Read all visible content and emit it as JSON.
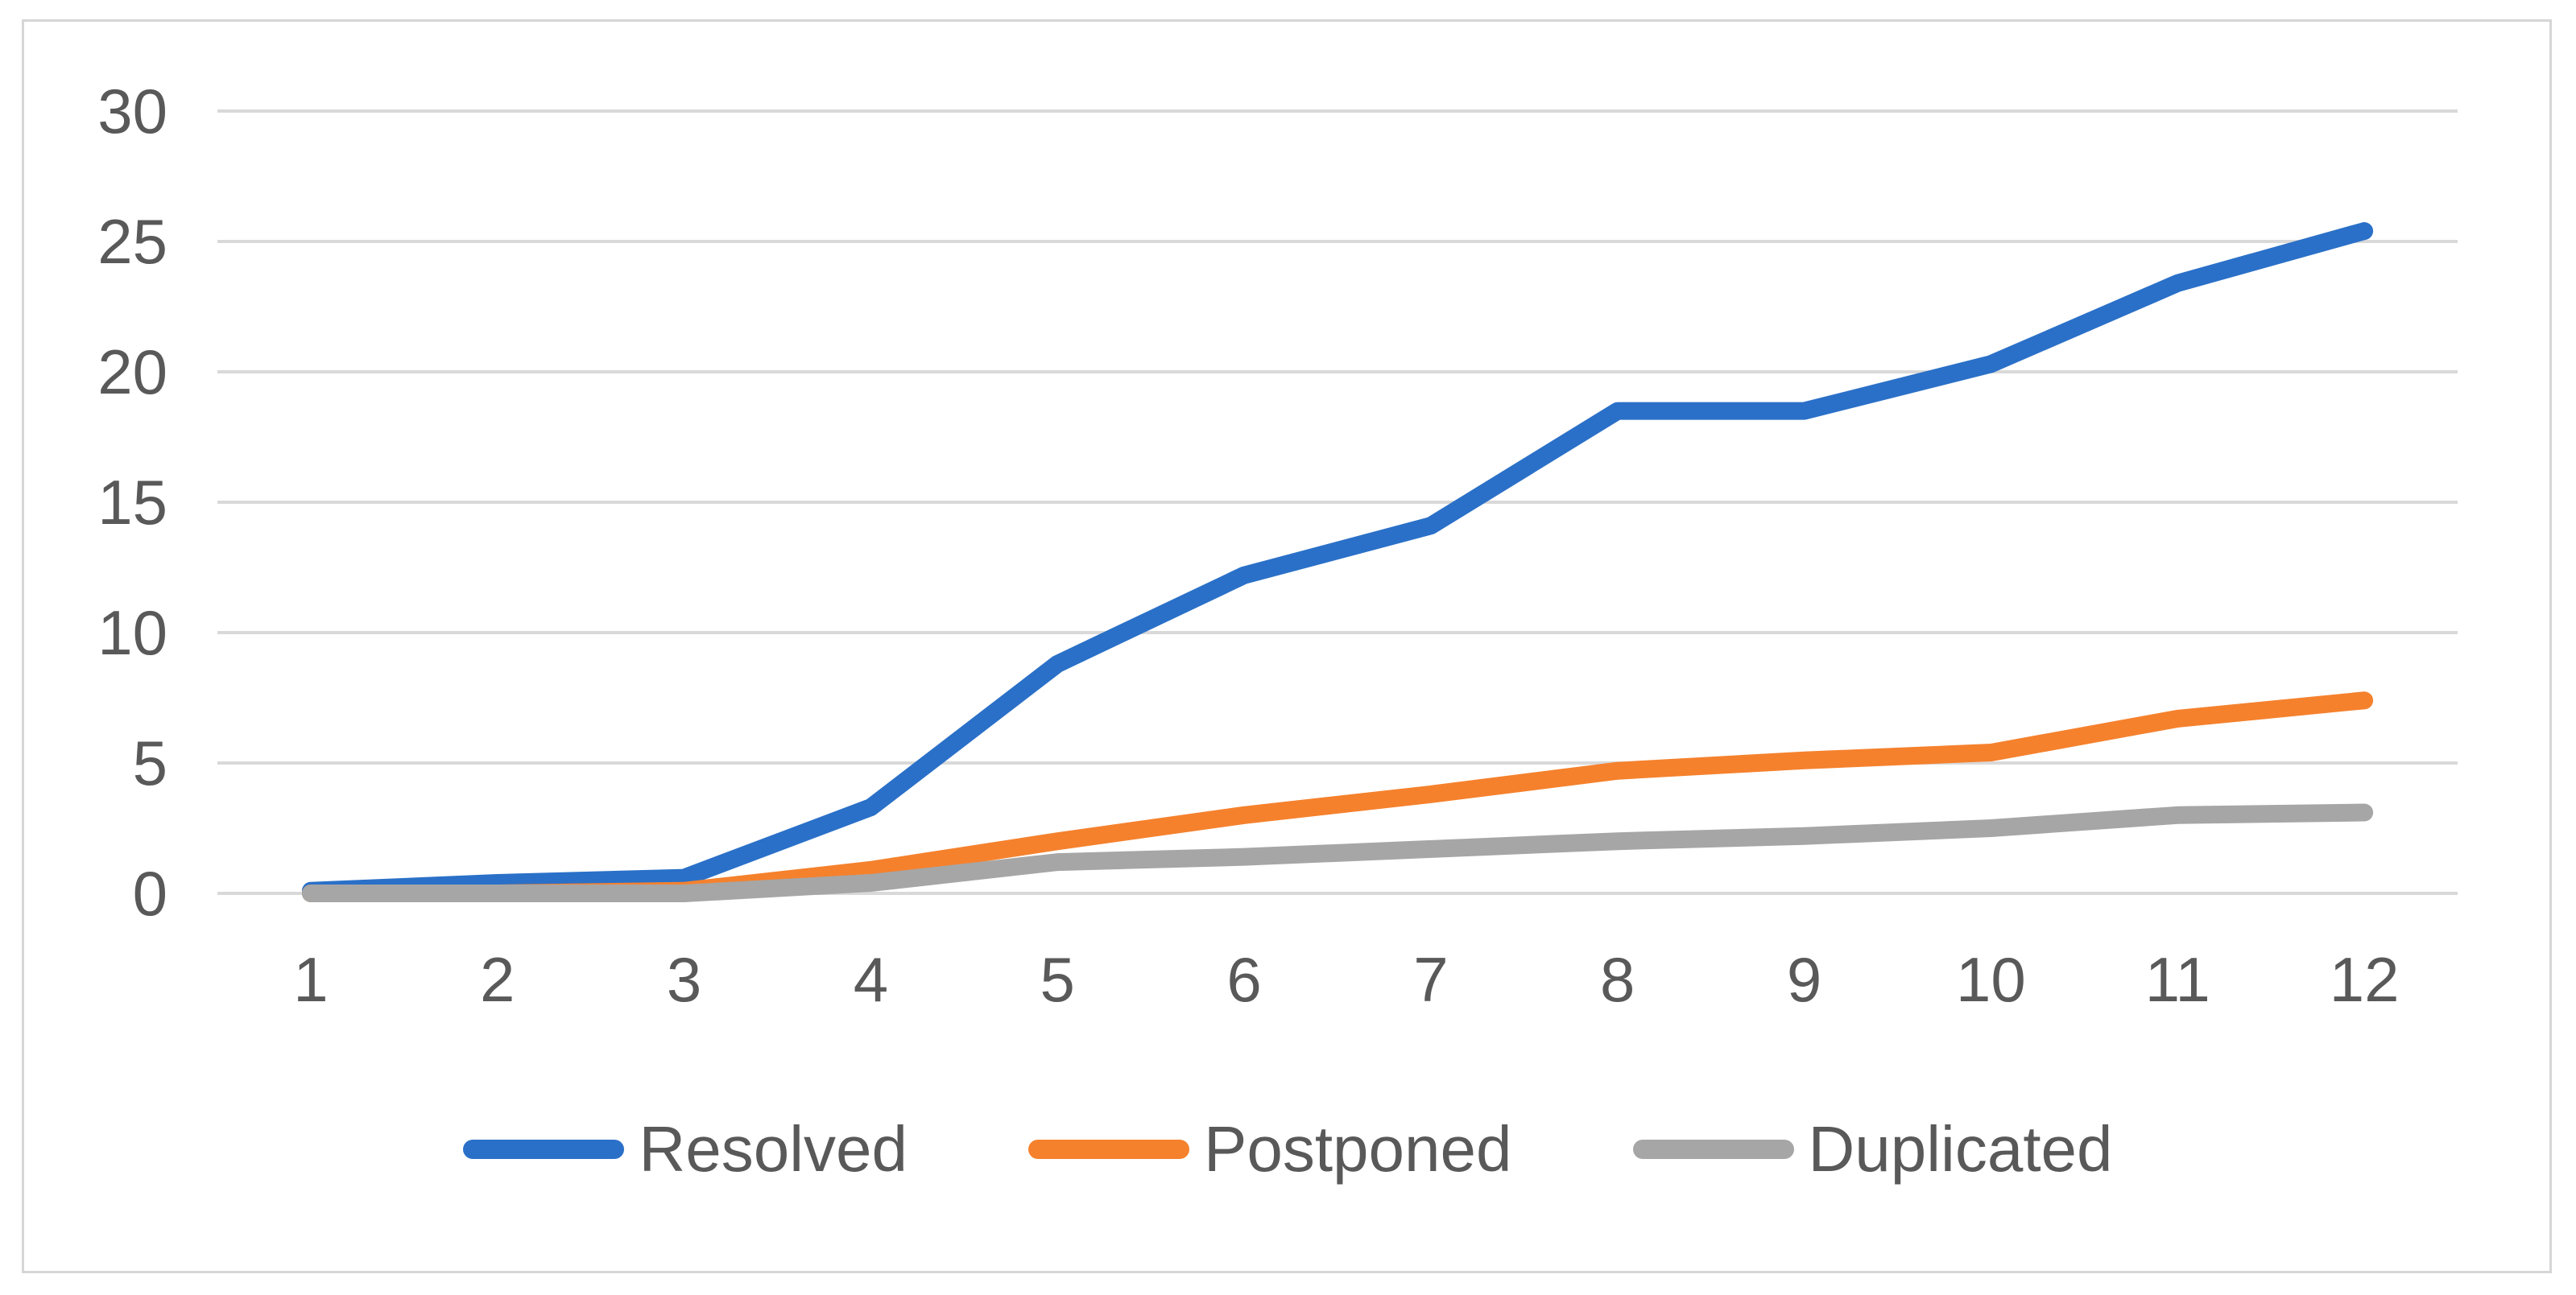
{
  "chart_data": {
    "type": "line",
    "x": [
      1,
      2,
      3,
      4,
      5,
      6,
      7,
      8,
      9,
      10,
      11,
      12
    ],
    "series": [
      {
        "name": "Resolved",
        "color": "#2a70c8",
        "values": [
          0.1,
          0.4,
          0.6,
          3.3,
          8.8,
          12.2,
          14.1,
          18.5,
          18.5,
          20.3,
          23.4,
          25.4
        ]
      },
      {
        "name": "Postponed",
        "color": "#f5812d",
        "values": [
          0,
          0,
          0.1,
          0.9,
          2.0,
          3.0,
          3.8,
          4.7,
          5.1,
          5.4,
          6.7,
          7.4
        ]
      },
      {
        "name": "Duplicated",
        "color": "#a6a6a6",
        "values": [
          0,
          0,
          0,
          0.4,
          1.2,
          1.4,
          1.7,
          2.0,
          2.2,
          2.5,
          3.0,
          3.1
        ]
      }
    ],
    "title": "",
    "xlabel": "",
    "ylabel": "",
    "ylim": [
      0,
      30
    ],
    "yticks": [
      0,
      5,
      10,
      15,
      20,
      25,
      30
    ],
    "xticks": [
      "1",
      "2",
      "3",
      "4",
      "5",
      "6",
      "7",
      "8",
      "9",
      "10",
      "11",
      "12"
    ],
    "grid": true,
    "legend_position": "bottom"
  },
  "colors": {
    "series_resolved": "#2a70c8",
    "series_postponed": "#f5812d",
    "series_duplicated": "#a6a6a6",
    "gridline": "#d9d9d9",
    "axis_text": "#595959",
    "frame_border": "#d6d6d6",
    "background": "#ffffff"
  },
  "legend": {
    "items": [
      {
        "label": "Resolved",
        "color": "#2a70c8"
      },
      {
        "label": "Postponed",
        "color": "#f5812d"
      },
      {
        "label": "Duplicated",
        "color": "#a6a6a6"
      }
    ]
  }
}
